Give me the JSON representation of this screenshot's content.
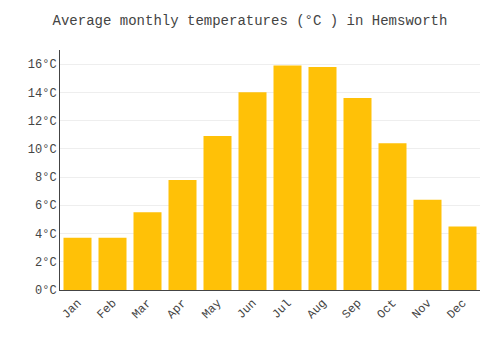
{
  "chart_data": {
    "type": "bar",
    "title": "Average monthly temperatures (°C ) in Hemsworth",
    "categories": [
      "Jan",
      "Feb",
      "Mar",
      "Apr",
      "May",
      "Jun",
      "Jul",
      "Aug",
      "Sep",
      "Oct",
      "Nov",
      "Dec"
    ],
    "values": [
      3.7,
      3.7,
      5.5,
      7.8,
      10.9,
      14.0,
      15.9,
      15.8,
      13.6,
      10.4,
      6.4,
      4.5
    ],
    "color": "#FFC107",
    "ylim": [
      0,
      17
    ],
    "yticks": [
      {
        "value": 0,
        "label": "0°C"
      },
      {
        "value": 2,
        "label": "2°C"
      },
      {
        "value": 4,
        "label": "4°C"
      },
      {
        "value": 6,
        "label": "6°C"
      },
      {
        "value": 8,
        "label": "8°C"
      },
      {
        "value": 10,
        "label": "10°C"
      },
      {
        "value": 12,
        "label": "12°C"
      },
      {
        "value": 14,
        "label": "14°C"
      },
      {
        "value": 16,
        "label": "16°C"
      }
    ],
    "grid": true
  }
}
